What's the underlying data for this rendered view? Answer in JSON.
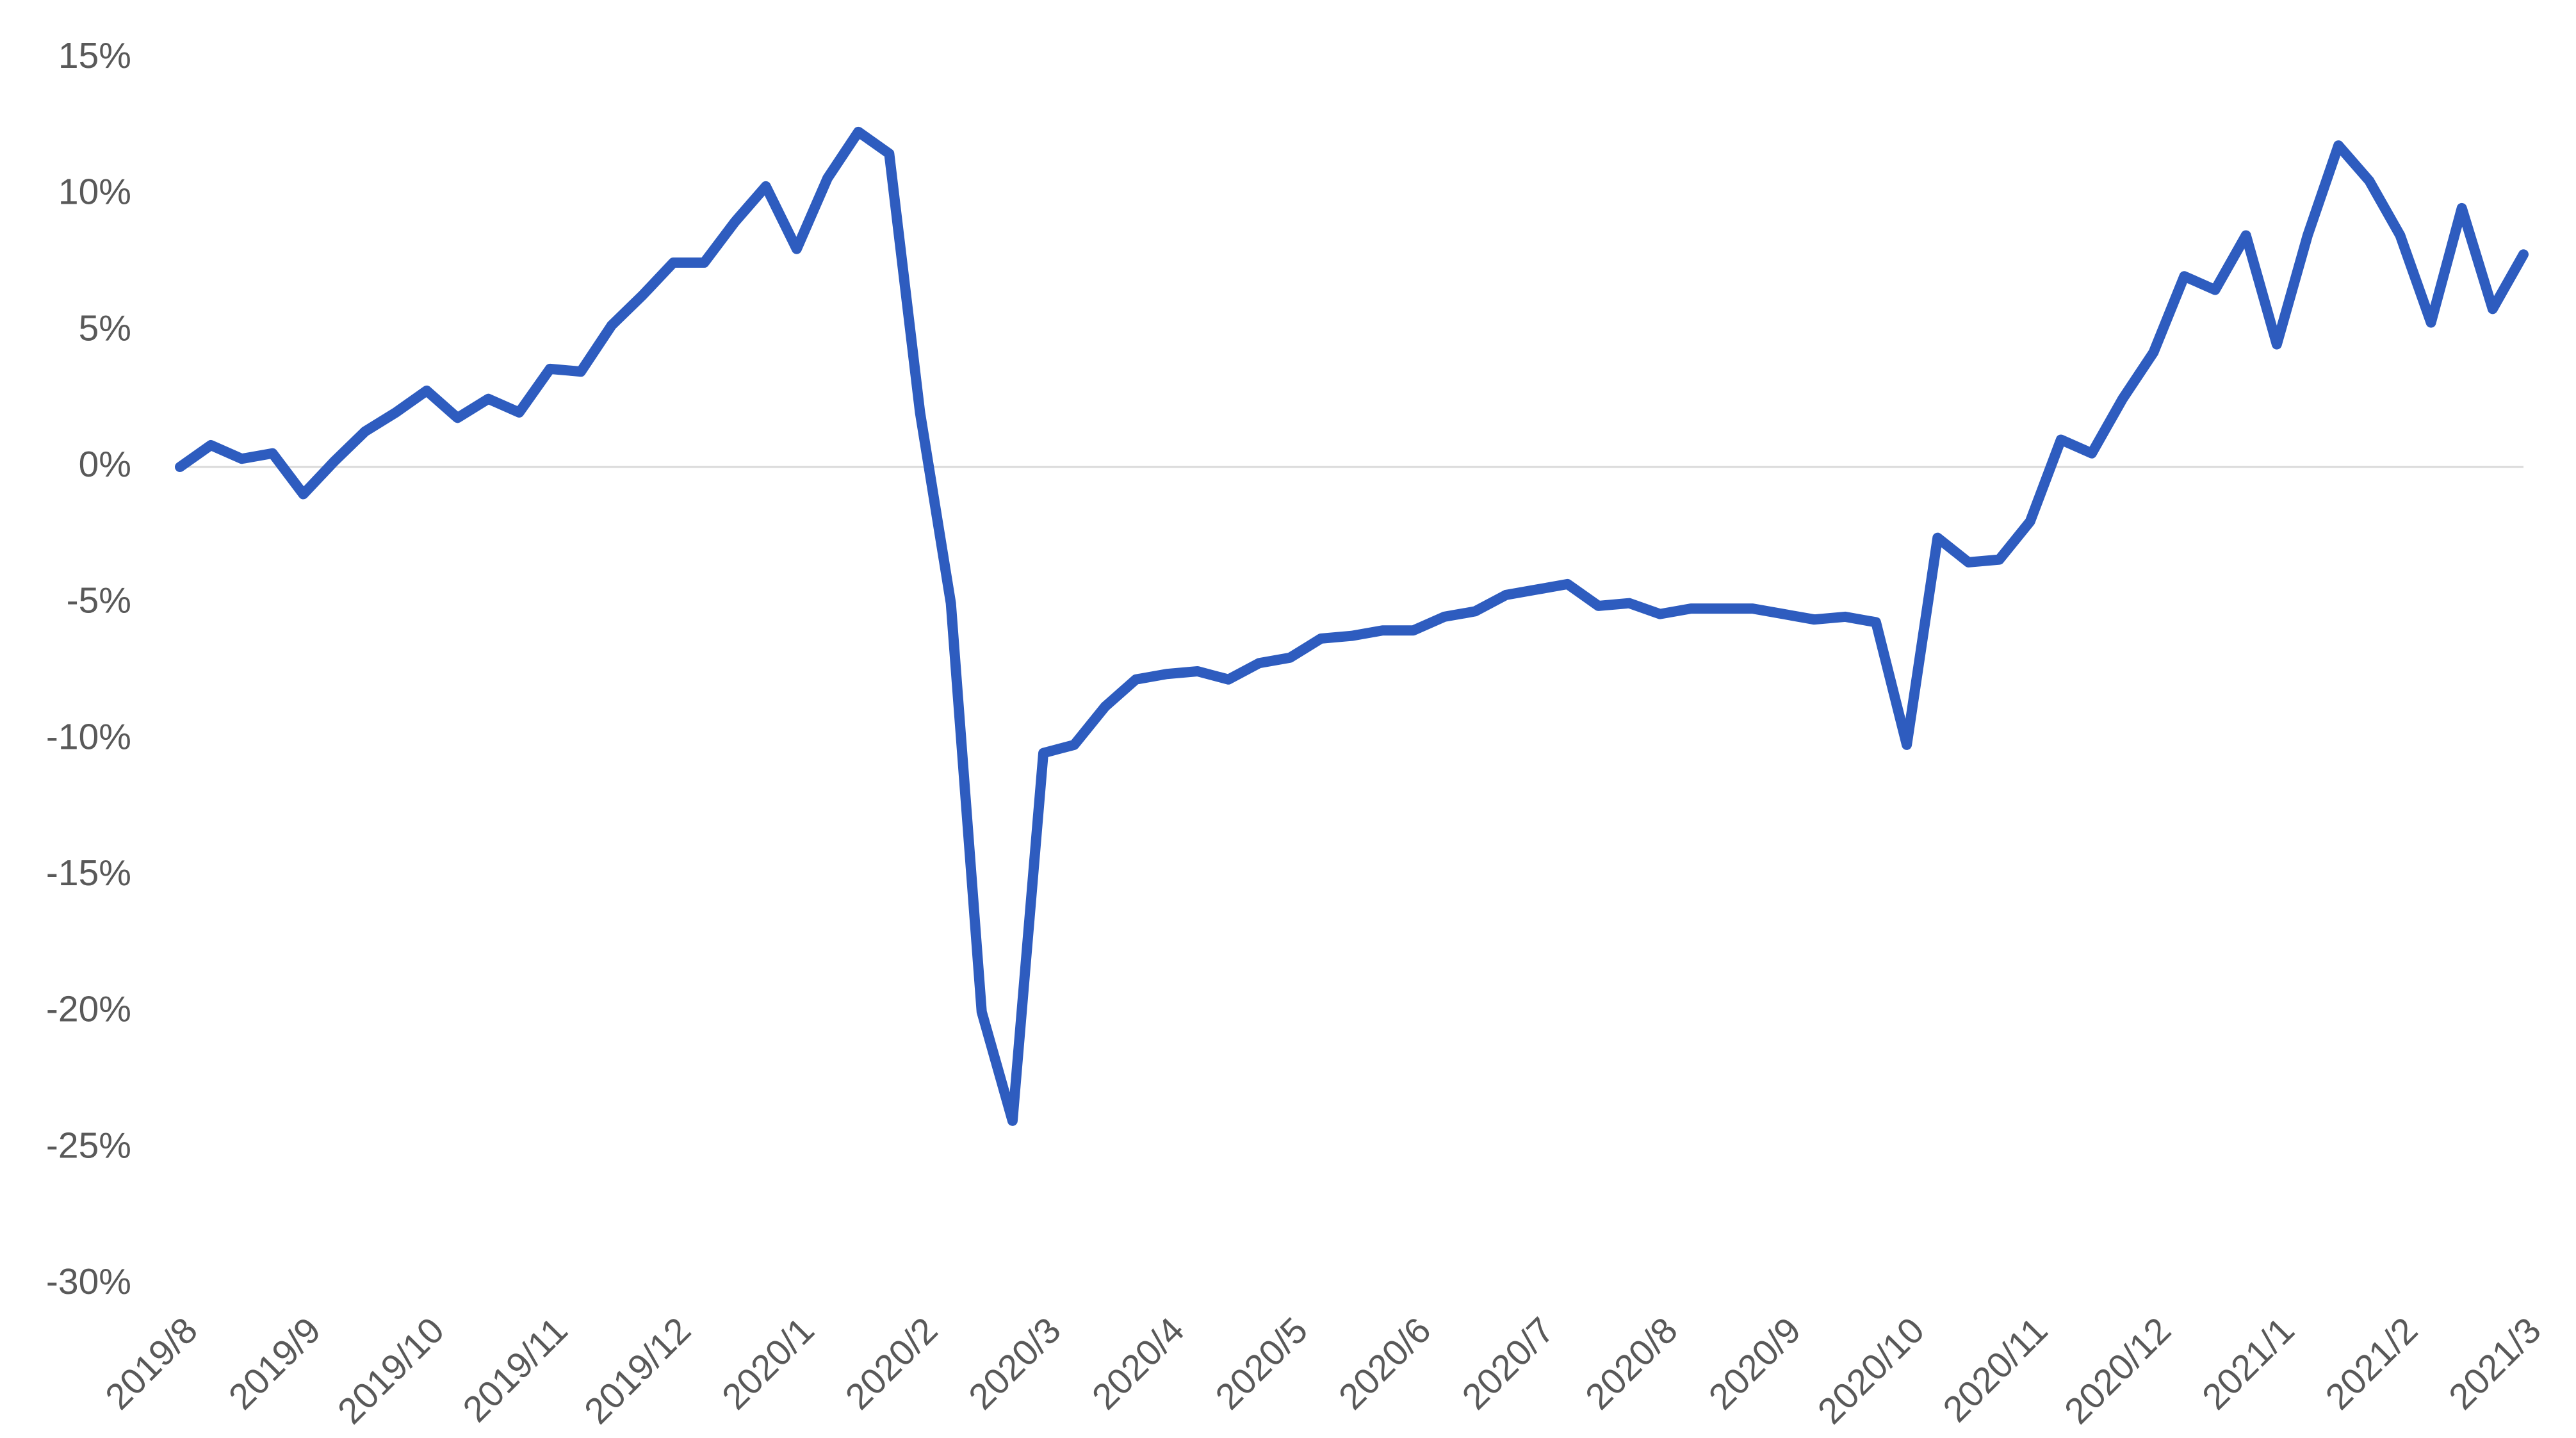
{
  "chart_data": {
    "type": "line",
    "categories": [
      "2019/8",
      null,
      null,
      null,
      "2019/9",
      null,
      null,
      null,
      "2019/10",
      null,
      null,
      null,
      "2019/11",
      null,
      null,
      null,
      "2019/12",
      null,
      null,
      null,
      "2020/1",
      null,
      null,
      null,
      "2020/2",
      null,
      null,
      null,
      "2020/3",
      null,
      null,
      null,
      "2020/4",
      null,
      null,
      null,
      "2020/5",
      null,
      null,
      null,
      "2020/6",
      null,
      null,
      null,
      "2020/7",
      null,
      null,
      null,
      "2020/8",
      null,
      null,
      null,
      "2020/9",
      null,
      null,
      null,
      "2020/10",
      null,
      null,
      null,
      "2020/11",
      null,
      null,
      null,
      "2020/12",
      null,
      null,
      null,
      "2021/1",
      null,
      null,
      null,
      "2021/2",
      null,
      null,
      null,
      "2021/3"
    ],
    "series": [
      {
        "name": null,
        "color": "#2e5cbf",
        "values": [
          0,
          0.8,
          0.3,
          0.5,
          -1.0,
          0.2,
          1.3,
          2.0,
          2.8,
          1.8,
          2.5,
          2.0,
          3.6,
          3.5,
          5.2,
          6.3,
          7.5,
          7.5,
          9.0,
          10.3,
          8.0,
          10.6,
          12.3,
          11.5,
          2.0,
          -5.0,
          -20.0,
          -24.0,
          -10.5,
          -10.2,
          -8.8,
          -7.8,
          -7.6,
          -7.5,
          -7.8,
          -7.2,
          -7.0,
          -6.3,
          -6.2,
          -6.0,
          -6.0,
          -5.5,
          -5.3,
          -4.7,
          -4.5,
          -4.3,
          -5.1,
          -5.0,
          -5.4,
          -5.2,
          -5.2,
          -5.2,
          -5.4,
          -5.6,
          -5.5,
          -5.7,
          -10.2,
          -2.6,
          -3.5,
          -3.4,
          -2.0,
          1.0,
          0.5,
          2.5,
          4.2,
          7.0,
          6.5,
          8.5,
          4.5,
          8.5,
          11.8,
          10.5,
          8.5,
          5.3,
          9.5,
          5.8,
          7.8
        ]
      }
    ],
    "ylim": [
      -30,
      15
    ],
    "yticks": [
      {
        "value": -30,
        "label": "-30%"
      },
      {
        "value": -25,
        "label": "-25%"
      },
      {
        "value": -20,
        "label": "-20%"
      },
      {
        "value": -15,
        "label": "-15%"
      },
      {
        "value": -10,
        "label": "-10%"
      },
      {
        "value": -5,
        "label": "-5%"
      },
      {
        "value": 0,
        "label": "0%"
      },
      {
        "value": 5,
        "label": "5%"
      },
      {
        "value": 10,
        "label": "10%"
      },
      {
        "value": 15,
        "label": "15%"
      }
    ],
    "zero_line": true
  }
}
